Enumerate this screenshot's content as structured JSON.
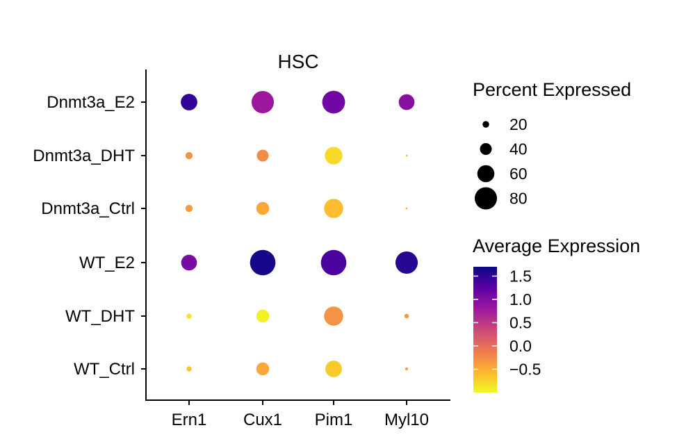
{
  "chart_data": {
    "type": "dotplot",
    "title": "HSC",
    "xlabel": "",
    "ylabel": "",
    "genes": [
      "Ern1",
      "Cux1",
      "Pim1",
      "Myl10"
    ],
    "groups": [
      "Dnmt3a_E2",
      "Dnmt3a_DHT",
      "Dnmt3a_Ctrl",
      "WT_E2",
      "WT_DHT",
      "WT_Ctrl"
    ],
    "points": [
      {
        "group": "Dnmt3a_E2",
        "gene": "Ern1",
        "pct": 58,
        "avg": 1.5
      },
      {
        "group": "Dnmt3a_E2",
        "gene": "Cux1",
        "pct": 80,
        "avg": 0.8
      },
      {
        "group": "Dnmt3a_E2",
        "gene": "Pim1",
        "pct": 82,
        "avg": 1.1
      },
      {
        "group": "Dnmt3a_E2",
        "gene": "Myl10",
        "pct": 55,
        "avg": 0.95
      },
      {
        "group": "Dnmt3a_DHT",
        "gene": "Ern1",
        "pct": 22,
        "avg": -0.3
      },
      {
        "group": "Dnmt3a_DHT",
        "gene": "Cux1",
        "pct": 40,
        "avg": -0.25
      },
      {
        "group": "Dnmt3a_DHT",
        "gene": "Pim1",
        "pct": 62,
        "avg": -0.8
      },
      {
        "group": "Dnmt3a_DHT",
        "gene": "Myl10",
        "pct": 2,
        "avg": -0.55
      },
      {
        "group": "Dnmt3a_Ctrl",
        "gene": "Ern1",
        "pct": 22,
        "avg": -0.35
      },
      {
        "group": "Dnmt3a_Ctrl",
        "gene": "Cux1",
        "pct": 44,
        "avg": -0.45
      },
      {
        "group": "Dnmt3a_Ctrl",
        "gene": "Pim1",
        "pct": 68,
        "avg": -0.6
      },
      {
        "group": "Dnmt3a_Ctrl",
        "gene": "Myl10",
        "pct": 2,
        "avg": -0.55
      },
      {
        "group": "WT_E2",
        "gene": "Ern1",
        "pct": 55,
        "avg": 1.05
      },
      {
        "group": "WT_E2",
        "gene": "Cux1",
        "pct": 92,
        "avg": 1.65
      },
      {
        "group": "WT_E2",
        "gene": "Pim1",
        "pct": 92,
        "avg": 1.35
      },
      {
        "group": "WT_E2",
        "gene": "Myl10",
        "pct": 80,
        "avg": 1.55
      },
      {
        "group": "WT_DHT",
        "gene": "Ern1",
        "pct": 14,
        "avg": -0.85
      },
      {
        "group": "WT_DHT",
        "gene": "Cux1",
        "pct": 44,
        "avg": -0.95
      },
      {
        "group": "WT_DHT",
        "gene": "Pim1",
        "pct": 68,
        "avg": -0.3
      },
      {
        "group": "WT_DHT",
        "gene": "Myl10",
        "pct": 12,
        "avg": -0.35
      },
      {
        "group": "WT_Ctrl",
        "gene": "Ern1",
        "pct": 14,
        "avg": -0.65
      },
      {
        "group": "WT_Ctrl",
        "gene": "Cux1",
        "pct": 44,
        "avg": -0.45
      },
      {
        "group": "WT_Ctrl",
        "gene": "Pim1",
        "pct": 58,
        "avg": -0.7
      },
      {
        "group": "WT_Ctrl",
        "gene": "Myl10",
        "pct": 6,
        "avg": -0.4
      }
    ],
    "size_legend": {
      "title": "Percent Expressed",
      "breaks": [
        20,
        40,
        60,
        80
      ]
    },
    "color_legend": {
      "title": "Average Expression",
      "range": [
        -1.0,
        1.7
      ],
      "breaks": [
        1.5,
        1.0,
        0.5,
        0.0,
        -0.5
      ],
      "labels": [
        "1.5",
        "1.0",
        "0.5",
        "0.0",
        "−0.5"
      ],
      "palette": [
        "#f0f921",
        "#fdb42f",
        "#ed7953",
        "#cc4778",
        "#9c179e",
        "#5c01a6",
        "#0d0887"
      ]
    },
    "legend_position": "right",
    "grid": false
  }
}
